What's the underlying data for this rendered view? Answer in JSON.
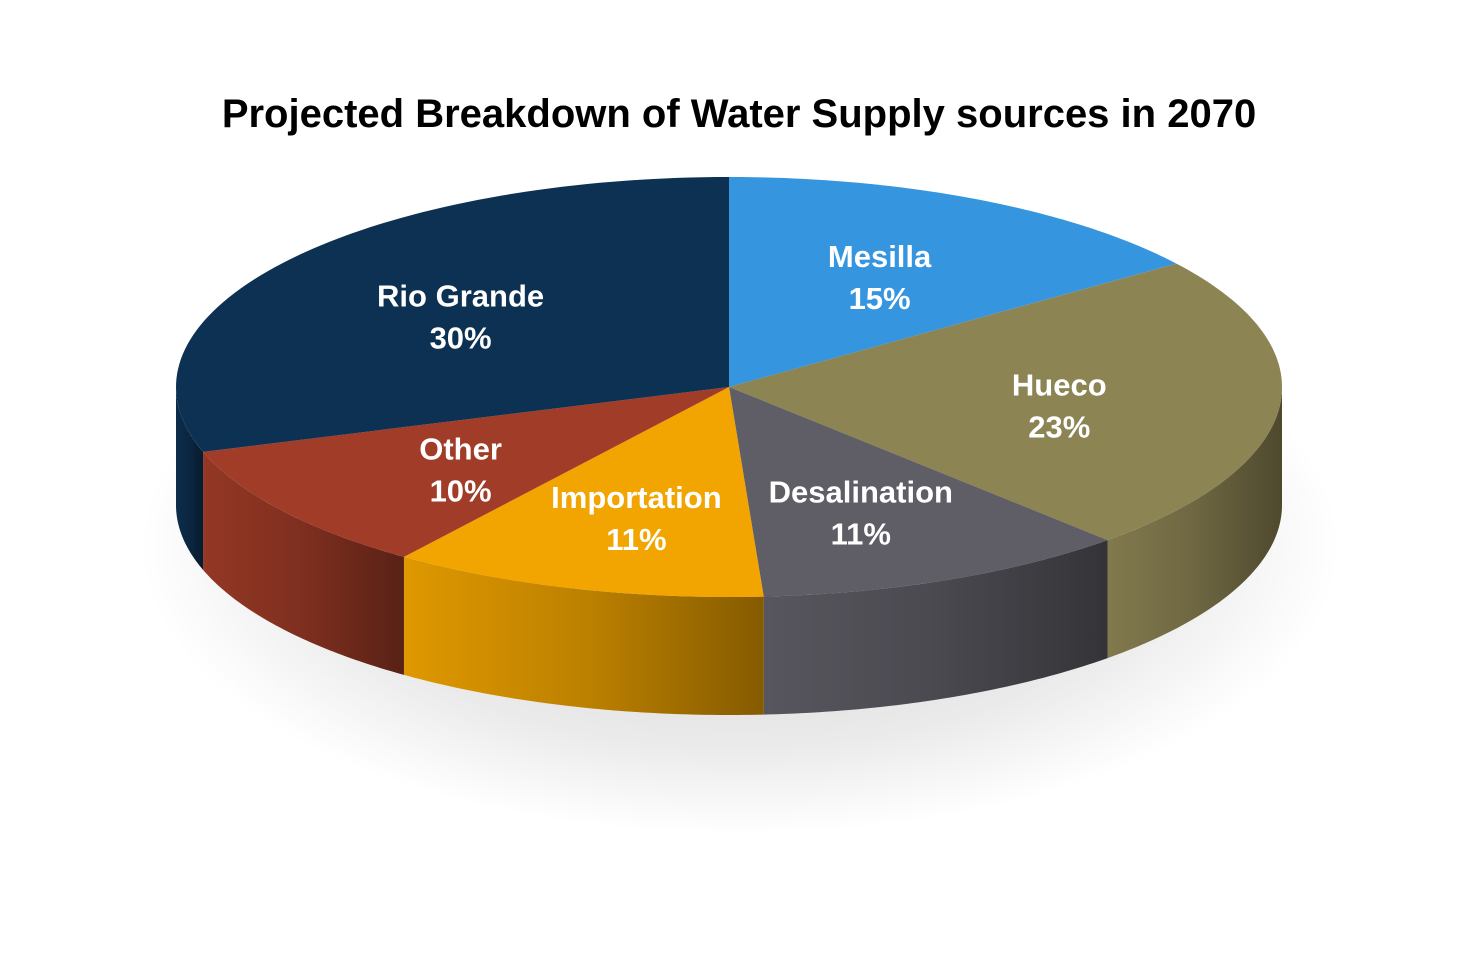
{
  "chart_data": {
    "type": "pie",
    "title": "Projected Breakdown of Water Supply sources in 2070",
    "style": "3d",
    "slices": [
      {
        "label": "Mesilla",
        "value": 15,
        "value_label": "15%",
        "color": "#3595DE"
      },
      {
        "label": "Hueco",
        "value": 23,
        "value_label": "23%",
        "color": "#8D8454"
      },
      {
        "label": "Desalination",
        "value": 11,
        "value_label": "11%",
        "color": "#5F5E66"
      },
      {
        "label": "Importation",
        "value": 11,
        "value_label": "11%",
        "color": "#F2A500"
      },
      {
        "label": "Other",
        "value": 10,
        "value_label": "10%",
        "color": "#A13C28"
      },
      {
        "label": "Rio Grande",
        "value": 30,
        "value_label": "30%",
        "color": "#0D3152"
      }
    ]
  }
}
